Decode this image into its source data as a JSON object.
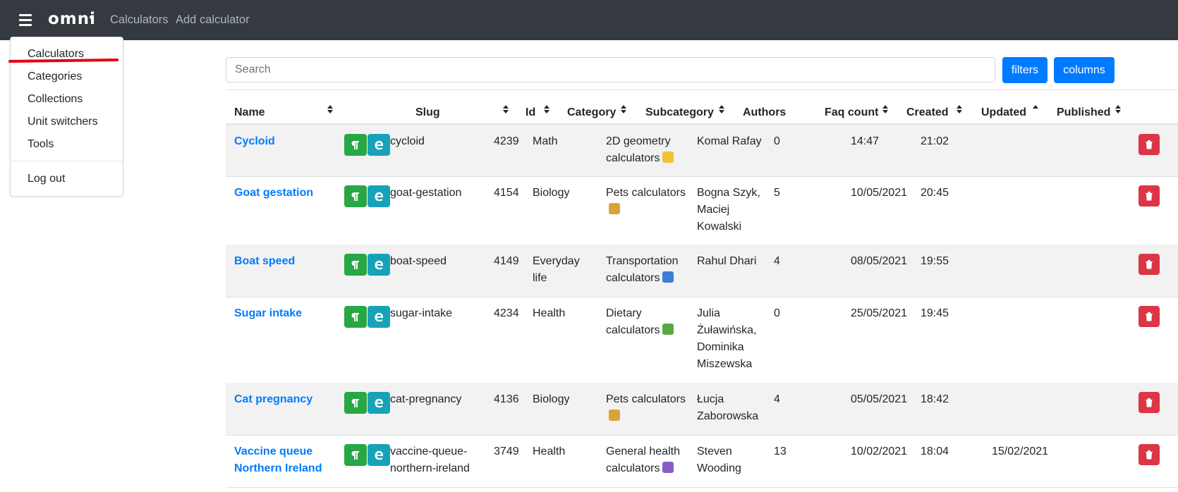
{
  "navbar": {
    "logo": "omni",
    "links": [
      "Calculators",
      "Add calculator"
    ],
    "menu_icon": "hamburger-icon"
  },
  "dropdown": {
    "items": [
      "Calculators",
      "Categories",
      "Collections",
      "Unit switchers",
      "Tools"
    ],
    "logout": "Log out"
  },
  "search": {
    "placeholder": "Search",
    "value": ""
  },
  "toolbar": {
    "filters_label": "filters",
    "columns_label": "columns"
  },
  "table": {
    "headers": {
      "name": "Name",
      "slug": "Slug",
      "id": "Id",
      "category": "Category",
      "subcategory": "Subcategory",
      "authors": "Authors",
      "faq_count": "Faq count",
      "created": "Created",
      "updated": "Updated",
      "published": "Published"
    },
    "sorted_column": "Updated",
    "sort_direction": "ascending",
    "rows": [
      {
        "name": [
          "Cycloid"
        ],
        "slug": [
          "cycloid"
        ],
        "id": "4239",
        "category": [
          "Math"
        ],
        "subcategory": [
          "2D geometry",
          "calculators"
        ],
        "subcategory_icon": "ruler-icon",
        "authors": [
          "Komal Rafay"
        ],
        "faq_count": "0",
        "created": "14:47",
        "updated": "21:02",
        "published": ""
      },
      {
        "name": [
          "Goat gestation"
        ],
        "slug": [
          "goat-gestation"
        ],
        "id": "4154",
        "category": [
          "Biology"
        ],
        "subcategory": [
          "Pets calculators",
          ""
        ],
        "subcategory_icon": "dog-icon",
        "authors": [
          "Bogna Szyk,",
          "Maciej",
          "Kowalski"
        ],
        "faq_count": "5",
        "created": "10/05/2021",
        "updated": "20:45",
        "published": ""
      },
      {
        "name": [
          "Boat speed"
        ],
        "slug": [
          "boat-speed"
        ],
        "id": "4149",
        "category": [
          "Everyday",
          "life"
        ],
        "subcategory": [
          "Transportation",
          "calculators"
        ],
        "subcategory_icon": "car-icon",
        "authors": [
          "Rahul Dhari"
        ],
        "faq_count": "4",
        "created": "08/05/2021",
        "updated": "19:55",
        "published": ""
      },
      {
        "name": [
          "Sugar intake"
        ],
        "slug": [
          "sugar-intake"
        ],
        "id": "4234",
        "category": [
          "Health"
        ],
        "subcategory": [
          "Dietary",
          "calculators"
        ],
        "subcategory_icon": "salad-icon",
        "authors": [
          "Julia",
          "Żuławińska,",
          "Dominika",
          "Miszewska"
        ],
        "faq_count": "0",
        "created": "25/05/2021",
        "updated": "19:45",
        "published": ""
      },
      {
        "name": [
          "Cat pregnancy"
        ],
        "slug": [
          "cat-pregnancy"
        ],
        "id": "4136",
        "category": [
          "Biology"
        ],
        "subcategory": [
          "Pets calculators",
          ""
        ],
        "subcategory_icon": "dog-icon",
        "authors": [
          "Łucja",
          "Zaborowska"
        ],
        "faq_count": "4",
        "created": "05/05/2021",
        "updated": "18:42",
        "published": ""
      },
      {
        "name": [
          "Vaccine queue",
          "Northern Ireland"
        ],
        "slug": [
          "vaccine-queue-",
          "northern-ireland"
        ],
        "id": "3749",
        "category": [
          "Health"
        ],
        "subcategory": [
          "General health",
          "calculators"
        ],
        "subcategory_icon": "medical-icon",
        "authors": [
          "Steven",
          "Wooding"
        ],
        "faq_count": "13",
        "created": "10/02/2021",
        "updated": "18:04",
        "published": "15/02/2021"
      }
    ]
  },
  "colors": {
    "navbar_bg": "#343a40",
    "primary": "#007bff",
    "success": "#28a745",
    "info": "#17a2b8",
    "danger": "#dc3545",
    "stripe": "#f2f2f2",
    "annotation": "#e4000f"
  }
}
